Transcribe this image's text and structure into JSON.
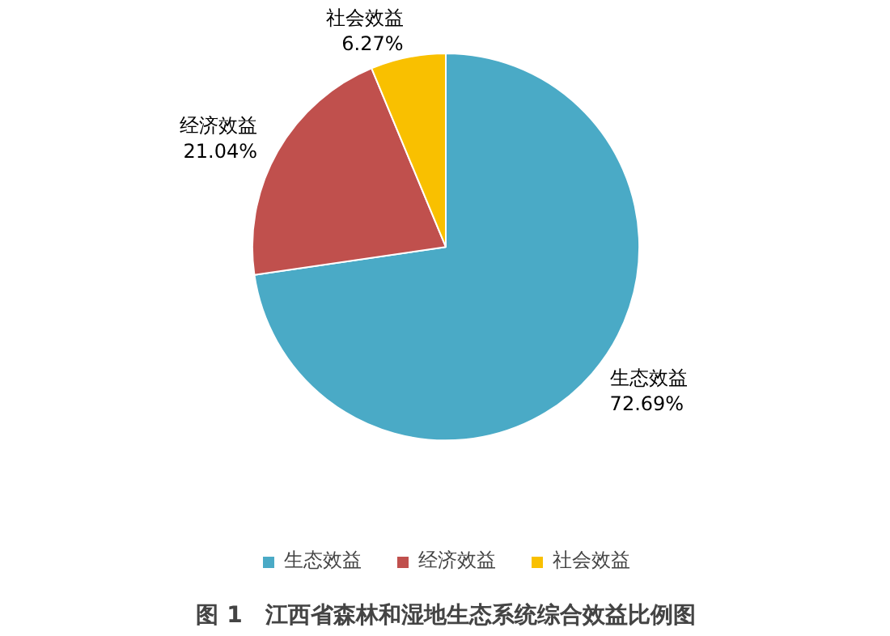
{
  "chart_data": {
    "type": "pie",
    "title": "图 1　江西省森林和湿地生态系统综合效益比例图",
    "categories": [
      "生态效益",
      "经济效益",
      "社会效益"
    ],
    "values": [
      72.69,
      21.04,
      6.27
    ],
    "colors": [
      "#4aaac6",
      "#c0504d",
      "#f9c000"
    ],
    "data_labels": true,
    "value_labels": [
      "72.69%",
      "21.04%",
      "6.27%"
    ],
    "legend": "bottom"
  }
}
